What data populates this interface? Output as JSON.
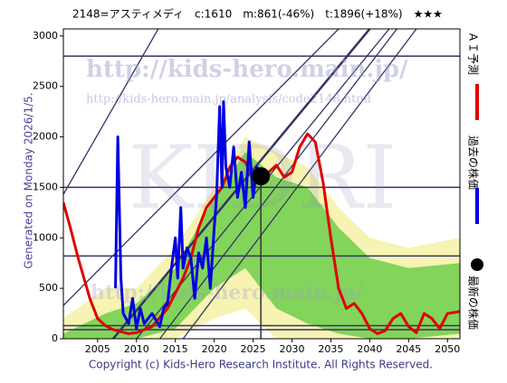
{
  "chart_data": {
    "type": "line",
    "title": "2148=アスティメディ　c:1610　m:861(-46%)　t:1896(+18%)　★★★",
    "side_note": "Generated on Monday 2026/1/5.",
    "footer": "Copyright (c) Kids-Hero Research Institute. All Rights Reserved.",
    "watermarks": [
      "http://kids-hero.main.jp/",
      "http://kids-hero.main.jp/analysis/code2148.html",
      "KIDRI"
    ],
    "xlim": [
      2000.6,
      2051.6
    ],
    "xticks": [
      2005,
      2010,
      2015,
      2020,
      2025,
      2030,
      2035,
      2040,
      2045,
      2050
    ],
    "ylim": [
      0,
      3070
    ],
    "yticks": [
      0,
      500,
      1000,
      1500,
      2000,
      2500,
      3000
    ],
    "series": [
      {
        "name": "ＡＩ予測",
        "color": "#e00000",
        "x": [
          2000.6,
          2001.5,
          2002.5,
          2004,
          2005,
          2006,
          2007,
          2008,
          2009,
          2010,
          2012,
          2014,
          2016,
          2017,
          2018,
          2019,
          2020,
          2021,
          2022,
          2023,
          2024,
          2025,
          2026,
          2027,
          2028,
          2029,
          2030,
          2031,
          2032,
          2033,
          2034,
          2035,
          2036,
          2037,
          2038,
          2039,
          2040,
          2041,
          2042,
          2043,
          2044,
          2045,
          2046,
          2047,
          2048,
          2049,
          2050,
          2051.6
        ],
        "values": [
          1350,
          1100,
          800,
          400,
          200,
          130,
          90,
          70,
          50,
          60,
          120,
          300,
          600,
          800,
          1100,
          1300,
          1400,
          1500,
          1700,
          1800,
          1750,
          1600,
          1550,
          1650,
          1720,
          1600,
          1650,
          1900,
          2030,
          1950,
          1550,
          1000,
          500,
          300,
          350,
          250,
          100,
          50,
          80,
          200,
          250,
          120,
          60,
          250,
          200,
          100,
          250,
          270
        ]
      },
      {
        "name": "過去の株価",
        "color": "#0000e0",
        "x": [
          2007.3,
          2007.6,
          2008,
          2008.3,
          2009,
          2009.5,
          2010,
          2010.5,
          2011,
          2012,
          2013,
          2013.5,
          2014,
          2014.5,
          2015,
          2015.3,
          2015.7,
          2016,
          2016.5,
          2017,
          2017.5,
          2018,
          2018.5,
          2019,
          2019.5,
          2020,
          2020.3,
          2020.7,
          2021,
          2021.2,
          2021.5,
          2022,
          2022.5,
          2023,
          2023.5,
          2024,
          2024.5,
          2025,
          2025.5,
          2026
        ],
        "values": [
          500,
          2000,
          600,
          250,
          150,
          400,
          100,
          300,
          150,
          250,
          120,
          300,
          350,
          700,
          1000,
          600,
          1300,
          700,
          900,
          800,
          400,
          850,
          700,
          1000,
          500,
          1100,
          1400,
          2300,
          1500,
          2350,
          1700,
          1500,
          1900,
          1400,
          1650,
          1300,
          1950,
          1400,
          1700,
          1610
        ]
      }
    ],
    "latest": {
      "name": "最新の株価",
      "color": "#000000",
      "x": 2026,
      "value": 1610
    },
    "levels": [
      2800,
      1500,
      820,
      130,
      90
    ],
    "trend_lines": [
      {
        "x": [
          2000.6,
          2012.8
        ],
        "y": [
          1430,
          3070
        ]
      },
      {
        "x": [
          2007,
          2040
        ],
        "y": [
          0,
          3070
        ]
      },
      {
        "x": [
          2010,
          2042.5
        ],
        "y": [
          0,
          3070
        ]
      },
      {
        "x": [
          2013,
          2043.5
        ],
        "y": [
          0,
          3070
        ]
      },
      {
        "x": [
          2016,
          2046
        ],
        "y": [
          0,
          3070
        ]
      },
      {
        "x": [
          2000.6,
          2036
        ],
        "y": [
          330,
          3070
        ]
      }
    ],
    "bands": [
      {
        "color": "#f4f0a0",
        "x": [
          2000.6,
          2006,
          2010,
          2015,
          2020,
          2024,
          2028,
          2032,
          2036,
          2040,
          2045,
          2051.6
        ],
        "upper": [
          200,
          500,
          500,
          900,
          1500,
          2000,
          1850,
          1700,
          1300,
          1000,
          900,
          1000
        ],
        "lower": [
          0,
          0,
          0,
          0,
          200,
          300,
          0,
          0,
          0,
          0,
          0,
          0
        ]
      },
      {
        "color": "#66cc44",
        "x": [
          2000.6,
          2006,
          2010,
          2015,
          2020,
          2024,
          2028,
          2032,
          2036,
          2040,
          2045,
          2051.6
        ],
        "upper": [
          50,
          250,
          350,
          700,
          1400,
          1850,
          1600,
          1500,
          1100,
          800,
          700,
          750
        ],
        "lower": [
          0,
          0,
          0,
          100,
          500,
          700,
          300,
          150,
          50,
          0,
          0,
          50
        ]
      }
    ]
  }
}
